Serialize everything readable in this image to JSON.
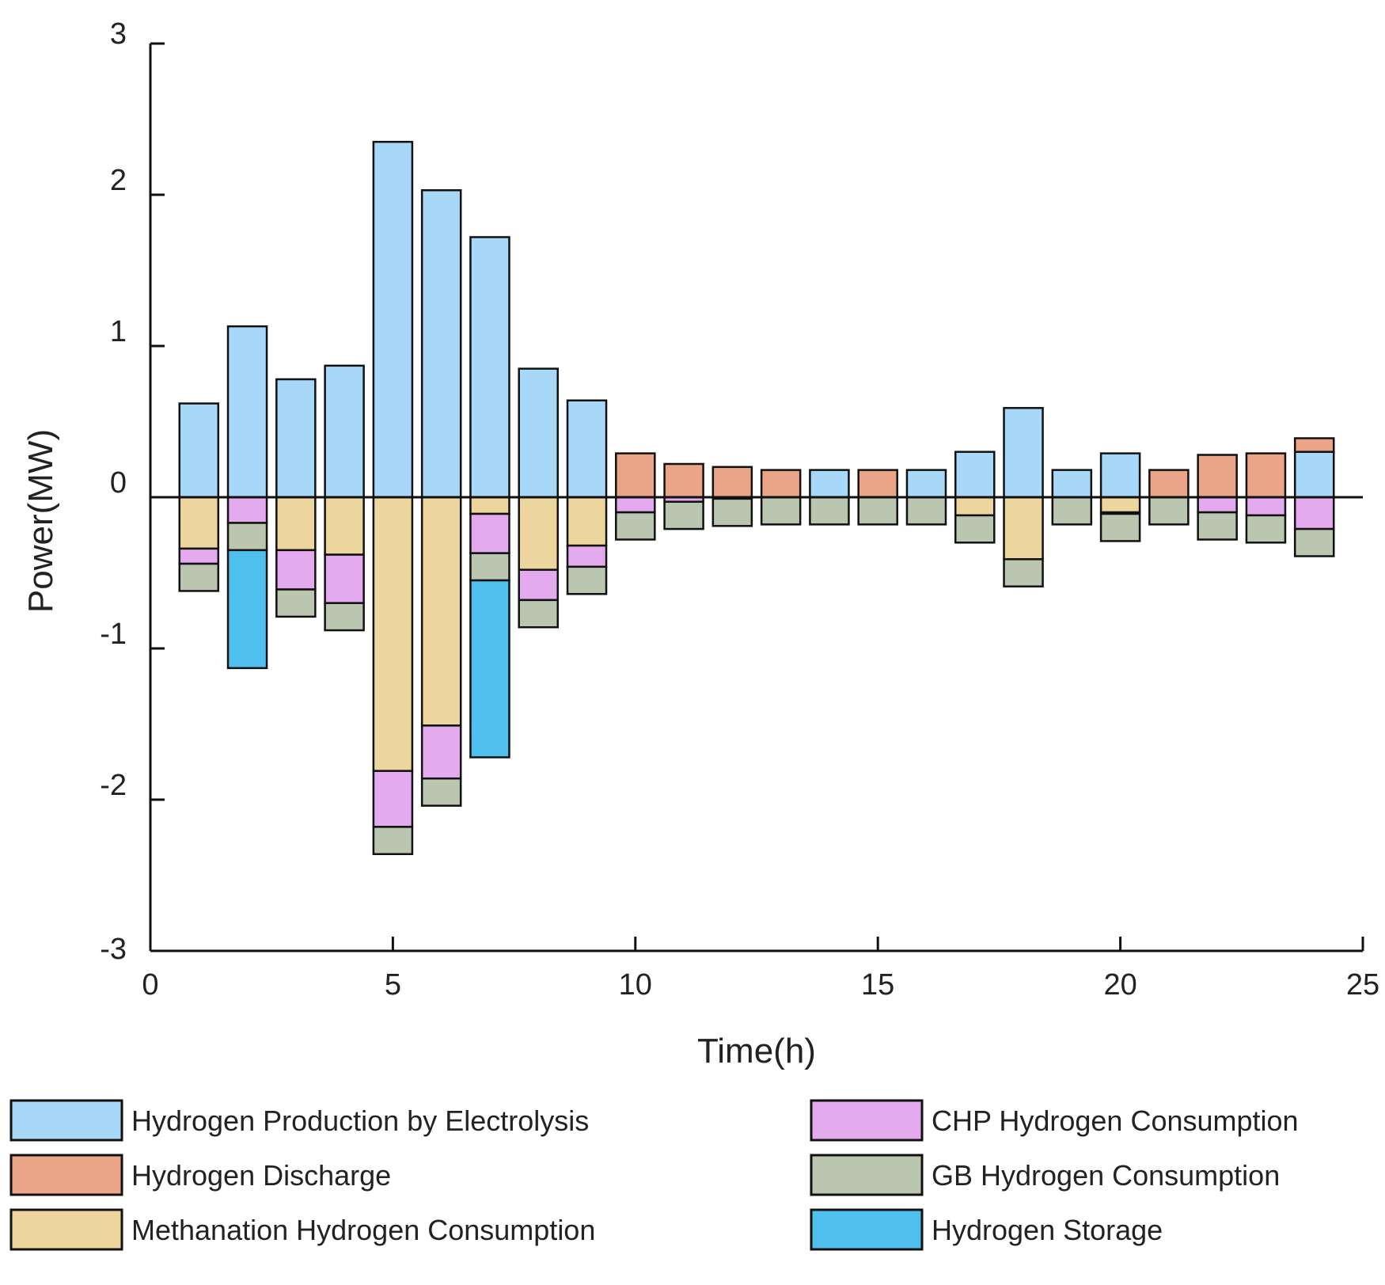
{
  "chart_data": {
    "type": "bar",
    "stacked": true,
    "title": "",
    "xlabel": "Time(h)",
    "ylabel": "Power(MW)",
    "xlim": [
      0,
      25
    ],
    "ylim": [
      -3,
      3
    ],
    "xticks": [
      0,
      5,
      10,
      15,
      20,
      25
    ],
    "yticks": [
      3,
      2,
      1,
      0,
      -1,
      -2,
      -3
    ],
    "grid": false,
    "legend_position": "bottom",
    "x": [
      1,
      2,
      3,
      4,
      5,
      6,
      7,
      8,
      9,
      10,
      11,
      12,
      13,
      14,
      15,
      16,
      17,
      18,
      19,
      20,
      21,
      22,
      23,
      24
    ],
    "series": [
      {
        "name": "Hydrogen Production by Electrolysis",
        "color": "#a8d8f8",
        "values": [
          0.62,
          1.13,
          0.78,
          0.87,
          2.35,
          2.03,
          1.72,
          0.85,
          0.64,
          0,
          0,
          0,
          0,
          0.18,
          0,
          0.18,
          0.3,
          0.59,
          0.18,
          0.29,
          0,
          0,
          0,
          0.3
        ]
      },
      {
        "name": "Hydrogen Discharge",
        "color": "#eaa588",
        "values": [
          0,
          0,
          0,
          0,
          0,
          0,
          0,
          0,
          0,
          0.29,
          0.22,
          0.2,
          0.18,
          0,
          0.18,
          0,
          0,
          0,
          0,
          0,
          0.18,
          0.28,
          0.29,
          0.09
        ]
      },
      {
        "name": "Methanation Hydrogen Consumption",
        "color": "#edd59e",
        "values": [
          -0.34,
          0,
          -0.35,
          -0.38,
          -1.81,
          -1.51,
          -0.11,
          -0.48,
          -0.32,
          0,
          0,
          0,
          0,
          0,
          0,
          0,
          -0.12,
          -0.41,
          0,
          -0.1,
          0,
          0,
          0,
          0
        ]
      },
      {
        "name": "CHP Hydrogen Consumption",
        "color": "#e4aaee",
        "values": [
          -0.1,
          -0.17,
          -0.26,
          -0.32,
          -0.37,
          -0.35,
          -0.26,
          -0.2,
          -0.14,
          -0.1,
          -0.03,
          -0.01,
          0,
          0,
          0,
          0,
          0,
          0,
          0,
          -0.01,
          0,
          -0.1,
          -0.12,
          -0.21
        ]
      },
      {
        "name": "GB Hydrogen Consumption",
        "color": "#bbc6b0",
        "values": [
          -0.18,
          -0.18,
          -0.18,
          -0.18,
          -0.18,
          -0.18,
          -0.18,
          -0.18,
          -0.18,
          -0.18,
          -0.18,
          -0.18,
          -0.18,
          -0.18,
          -0.18,
          -0.18,
          -0.18,
          -0.18,
          -0.18,
          -0.18,
          -0.18,
          -0.18,
          -0.18,
          -0.18
        ]
      },
      {
        "name": "Hydrogen Storage",
        "color": "#4fbfee",
        "values": [
          0,
          -0.78,
          0,
          0,
          0,
          0,
          -1.17,
          0,
          0,
          0,
          0,
          0,
          0,
          0,
          0,
          0,
          0,
          0,
          0,
          0,
          0,
          0,
          0,
          0
        ]
      }
    ]
  }
}
